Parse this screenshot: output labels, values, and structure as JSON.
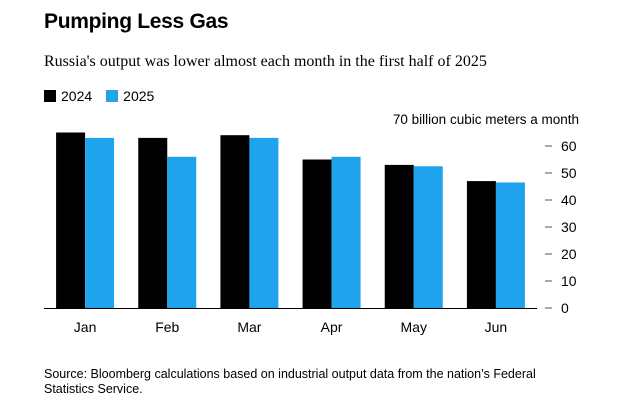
{
  "title": "Pumping Less Gas",
  "subtitle": "Russia's output was lower almost each month in the first half of 2025",
  "source": "Source: Bloomberg calculations based on industrial output data from the nation’s Federal Statistics Service.",
  "colors": {
    "2024": "#000000",
    "2025": "#1fa3ec"
  },
  "chart_data": {
    "type": "bar",
    "categories": [
      "Jan",
      "Feb",
      "Mar",
      "Apr",
      "May",
      "Jun"
    ],
    "series": [
      {
        "name": "2024",
        "values": [
          65,
          63,
          64,
          55,
          53,
          47
        ]
      },
      {
        "name": "2025",
        "values": [
          63,
          56,
          63,
          56,
          52.5,
          46.5
        ]
      }
    ],
    "ylabel": "70 billion cubic meters a month",
    "ylim": [
      0,
      70
    ],
    "yticks": [
      0,
      10,
      20,
      30,
      40,
      50,
      60
    ],
    "legend": "top-left",
    "grid": false
  }
}
